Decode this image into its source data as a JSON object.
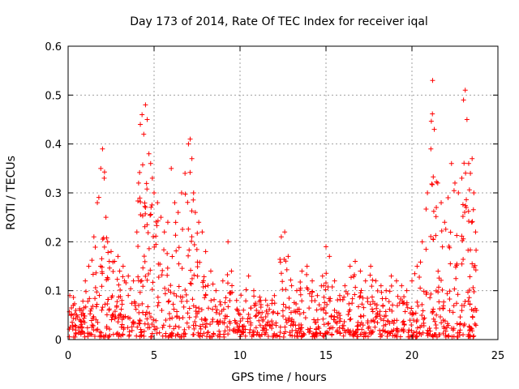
{
  "chart_data": {
    "type": "scatter",
    "title": "Day 173 of 2014, Rate Of TEC Index for receiver iqal",
    "xlabel": "GPS time / hours",
    "ylabel": "ROTI / TECUs",
    "xlim": [
      0,
      25
    ],
    "ylim": [
      0,
      0.6
    ],
    "xticks": [
      0,
      5,
      10,
      15,
      20,
      25
    ],
    "xtick_labels": [
      "0",
      "5",
      "10",
      "15",
      "20",
      "25"
    ],
    "yticks": [
      0,
      0.1,
      0.2,
      0.3,
      0.4,
      0.5,
      0.6
    ],
    "ytick_labels": [
      "0",
      "0.1",
      "0.2",
      "0.3",
      "0.4",
      "0.5",
      "0.6"
    ],
    "grid": true,
    "marker": "+",
    "color": "#ff0000",
    "series": [
      {
        "name": "ROTI",
        "x": [
          0.1,
          0.3,
          0.5,
          0.8,
          1.0,
          1.2,
          1.5,
          1.7,
          1.9,
          2.0,
          2.1,
          2.2,
          2.3,
          2.5,
          2.7,
          2.9,
          3.0,
          3.2,
          3.5,
          3.8,
          4.0,
          4.1,
          4.2,
          4.3,
          4.4,
          4.5,
          4.6,
          4.7,
          4.8,
          4.9,
          5.0,
          5.2,
          5.4,
          5.6,
          5.8,
          6.0,
          6.2,
          6.4,
          6.6,
          6.8,
          7.0,
          7.1,
          7.2,
          7.3,
          7.4,
          7.6,
          7.8,
          8.0,
          8.3,
          8.6,
          9.0,
          9.3,
          9.5,
          9.8,
          10.2,
          10.5,
          10.8,
          11.2,
          11.6,
          12.0,
          12.4,
          12.6,
          12.8,
          13.0,
          13.3,
          13.6,
          13.9,
          14.2,
          14.5,
          14.8,
          15.0,
          15.2,
          15.5,
          15.8,
          16.1,
          16.4,
          16.7,
          17.0,
          17.3,
          17.6,
          17.9,
          18.2,
          18.5,
          18.8,
          19.1,
          19.4,
          19.7,
          20.0,
          20.3,
          20.6,
          20.9,
          21.1,
          21.2,
          21.3,
          21.5,
          21.7,
          21.9,
          22.1,
          22.3,
          22.5,
          22.7,
          22.9,
          23.0,
          23.1,
          23.2,
          23.3,
          23.4,
          23.5,
          23.6,
          23.7
        ],
        "y": [
          0.09,
          0.07,
          0.05,
          0.06,
          0.12,
          0.15,
          0.21,
          0.28,
          0.35,
          0.39,
          0.33,
          0.25,
          0.2,
          0.18,
          0.16,
          0.17,
          0.14,
          0.15,
          0.13,
          0.12,
          0.22,
          0.32,
          0.44,
          0.46,
          0.42,
          0.48,
          0.45,
          0.38,
          0.36,
          0.33,
          0.3,
          0.28,
          0.25,
          0.22,
          0.24,
          0.35,
          0.28,
          0.26,
          0.3,
          0.34,
          0.4,
          0.41,
          0.37,
          0.3,
          0.26,
          0.24,
          0.22,
          0.18,
          0.14,
          0.1,
          0.12,
          0.2,
          0.14,
          0.08,
          0.06,
          0.13,
          0.1,
          0.08,
          0.07,
          0.09,
          0.21,
          0.22,
          0.17,
          0.11,
          0.1,
          0.14,
          0.15,
          0.12,
          0.09,
          0.13,
          0.19,
          0.17,
          0.12,
          0.09,
          0.11,
          0.15,
          0.16,
          0.14,
          0.12,
          0.15,
          0.12,
          0.11,
          0.1,
          0.13,
          0.12,
          0.11,
          0.1,
          0.12,
          0.15,
          0.2,
          0.3,
          0.39,
          0.53,
          0.43,
          0.32,
          0.28,
          0.24,
          0.29,
          0.36,
          0.32,
          0.3,
          0.33,
          0.49,
          0.51,
          0.45,
          0.36,
          0.34,
          0.37,
          0.3,
          0.22
        ]
      }
    ],
    "baseline_points": 720
  }
}
